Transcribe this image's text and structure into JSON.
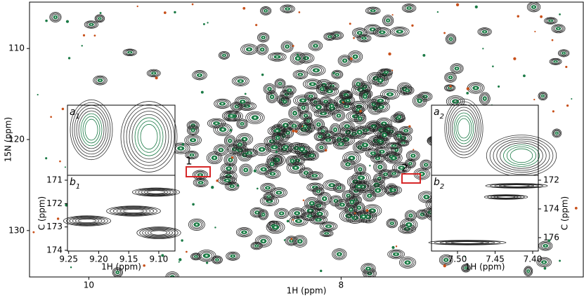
{
  "chart_data": [
    {
      "type": "contour",
      "xlabel": "1H (ppm)",
      "ylabel": "15N (ppm)",
      "xlim": [
        10.47,
        6.08
      ],
      "xticks": [
        10,
        8
      ],
      "ylim": [
        104.9,
        135.1
      ],
      "yticks": [
        110,
        120,
        130
      ],
      "annotations": [
        "1",
        "2"
      ],
      "annotation_color": "#d62728"
    },
    {
      "type": "inset",
      "panel": "a",
      "panel_sub": "1"
    },
    {
      "type": "contour",
      "panel": "b",
      "panel_sub": "1",
      "xlabel": "1H (ppm)",
      "ylabel": "C (ppm)",
      "xlim": [
        9.252,
        9.073
      ],
      "xticks": [
        9.25,
        {
          "value": 9.2,
          "label": "9.20"
        },
        9.15,
        {
          "value": 9.1,
          "label": "9.10"
        }
      ],
      "ylim": [
        170.79,
        174.03
      ],
      "yticks": [
        171,
        172,
        173,
        174
      ],
      "yaxis_side": "left"
    },
    {
      "type": "inset",
      "panel": "a",
      "panel_sub": "2"
    },
    {
      "type": "contour",
      "panel": "b",
      "panel_sub": "2",
      "xlabel": "1H (ppm)",
      "ylabel": "C (ppm)",
      "xlim": [
        7.5346,
        7.3925
      ],
      "xticks": [
        {
          "value": 7.5,
          "label": "7.50"
        },
        7.45,
        {
          "value": 7.4,
          "label": "7.40"
        }
      ],
      "ylim": [
        171.66,
        176.93
      ],
      "yticks": [
        172,
        174,
        176
      ],
      "yaxis_side": "right"
    }
  ]
}
